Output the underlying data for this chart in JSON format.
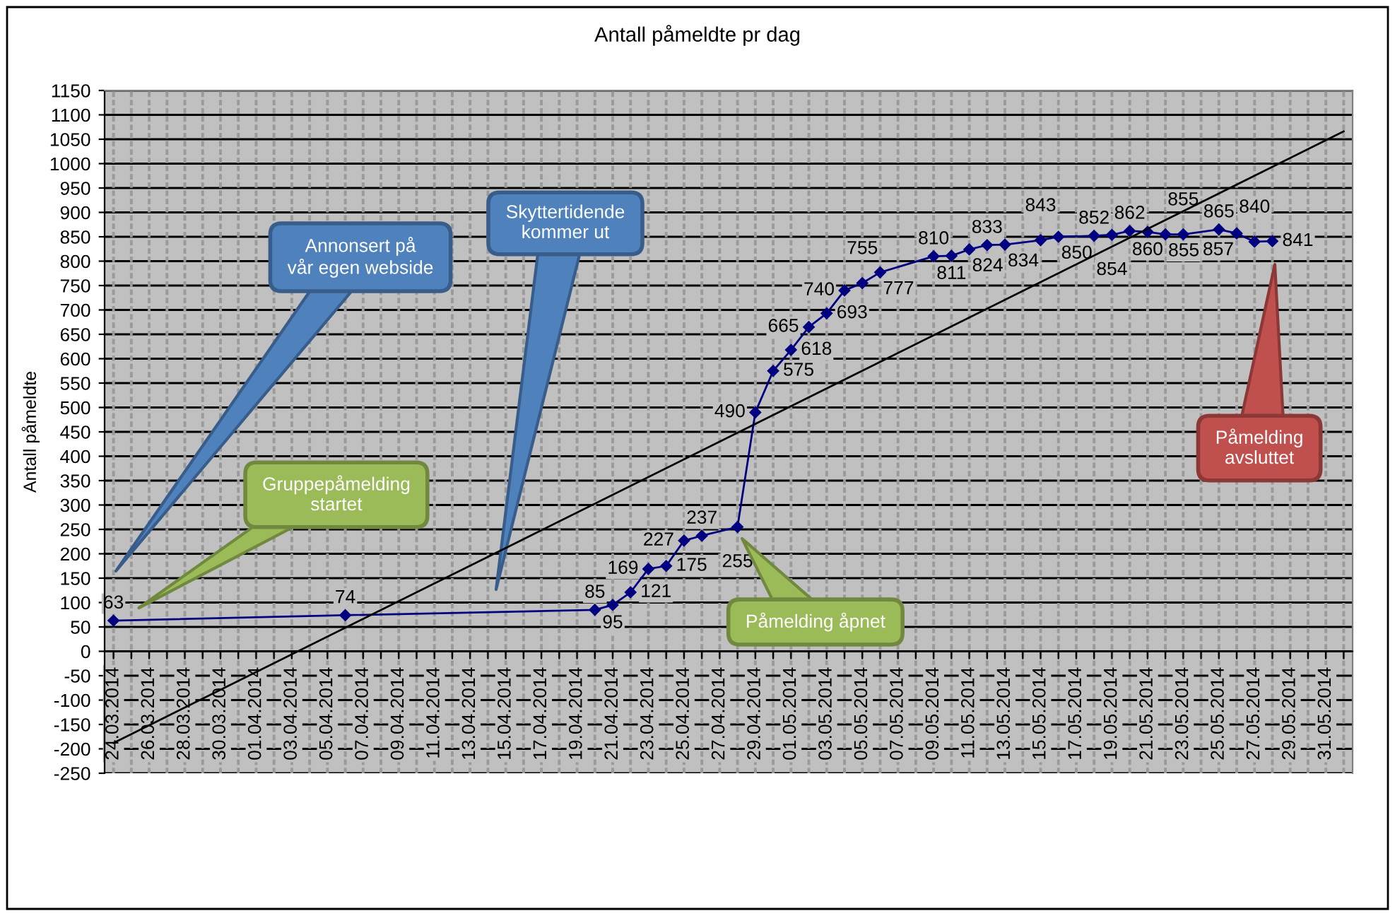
{
  "chart_data": {
    "type": "line",
    "title": "Antall påmeldte pr dag",
    "ylabel": "Antall påmeldte",
    "series": [
      {
        "color": "#000080",
        "marker": "diamond",
        "line_style": "solid",
        "x": [
          "2014-03-24",
          "2014-04-06",
          "2014-04-20",
          "2014-04-21",
          "2014-04-22",
          "2014-04-23",
          "2014-04-24",
          "2014-04-25",
          "2014-04-26",
          "2014-04-28",
          "2014-04-29",
          "2014-04-30",
          "2014-05-01",
          "2014-05-02",
          "2014-05-03",
          "2014-05-04",
          "2014-05-05",
          "2014-05-06",
          "2014-05-09",
          "2014-05-10",
          "2014-05-11",
          "2014-05-12",
          "2014-05-13",
          "2014-05-15",
          "2014-05-16",
          "2014-05-18",
          "2014-05-19",
          "2014-05-20",
          "2014-05-21",
          "2014-05-22",
          "2014-05-23",
          "2014-05-25",
          "2014-05-26",
          "2014-05-27",
          "2014-05-28"
        ],
        "values": [
          63,
          74,
          85,
          95,
          121,
          169,
          175,
          227,
          237,
          255,
          490,
          575,
          618,
          665,
          693,
          740,
          755,
          777,
          810,
          811,
          824,
          833,
          834,
          843,
          850,
          852,
          854,
          862,
          860,
          855,
          855,
          865,
          857,
          840,
          841
        ],
        "value_labels": [
          "63",
          "74",
          "85",
          "95",
          "121",
          "169",
          "175",
          "227",
          "237",
          "255",
          "490",
          "575",
          "618",
          "665",
          "693",
          "740",
          "755",
          "777",
          "810",
          "811",
          "824",
          "833",
          "834",
          "843",
          "850",
          "852",
          "854",
          "862",
          "860",
          "855",
          "855",
          "865",
          "857",
          "840",
          "841"
        ]
      },
      {
        "type": "line",
        "color": "#000000",
        "marker": "none",
        "line_style": "solid",
        "x": [
          "2014-03-24",
          "2014-06-01"
        ],
        "values": [
          -188,
          1066
        ]
      }
    ],
    "xlim": [
      "2014-03-23T12:00",
      "2014-06-01T12:00"
    ],
    "xticks": [
      {
        "value": "2014-03-24",
        "label": "24.03.2014"
      },
      {
        "value": "2014-03-25",
        "label": null
      },
      {
        "value": "2014-03-26",
        "label": "26.03.2014"
      },
      {
        "value": "2014-03-27",
        "label": null
      },
      {
        "value": "2014-03-28",
        "label": "28.03.2014"
      },
      {
        "value": "2014-03-29",
        "label": null
      },
      {
        "value": "2014-03-30",
        "label": "30.03.2014"
      },
      {
        "value": "2014-03-31",
        "label": null
      },
      {
        "value": "2014-04-01",
        "label": "01.04.2014"
      },
      {
        "value": "2014-04-02",
        "label": null
      },
      {
        "value": "2014-04-03",
        "label": "03.04.2014"
      },
      {
        "value": "2014-04-04",
        "label": null
      },
      {
        "value": "2014-04-05",
        "label": "05.04.2014"
      },
      {
        "value": "2014-04-06",
        "label": null
      },
      {
        "value": "2014-04-07",
        "label": "07.04.2014"
      },
      {
        "value": "2014-04-08",
        "label": null
      },
      {
        "value": "2014-04-09",
        "label": "09.04.2014"
      },
      {
        "value": "2014-04-10",
        "label": null
      },
      {
        "value": "2014-04-11",
        "label": "11.04.2014"
      },
      {
        "value": "2014-04-12",
        "label": null
      },
      {
        "value": "2014-04-13",
        "label": "13.04.2014"
      },
      {
        "value": "2014-04-14",
        "label": null
      },
      {
        "value": "2014-04-15",
        "label": "15.04.2014"
      },
      {
        "value": "2014-04-16",
        "label": null
      },
      {
        "value": "2014-04-17",
        "label": "17.04.2014"
      },
      {
        "value": "2014-04-18",
        "label": null
      },
      {
        "value": "2014-04-19",
        "label": "19.04.2014"
      },
      {
        "value": "2014-04-20",
        "label": null
      },
      {
        "value": "2014-04-21",
        "label": "21.04.2014"
      },
      {
        "value": "2014-04-22",
        "label": null
      },
      {
        "value": "2014-04-23",
        "label": "23.04.2014"
      },
      {
        "value": "2014-04-24",
        "label": null
      },
      {
        "value": "2014-04-25",
        "label": "25.04.2014"
      },
      {
        "value": "2014-04-26",
        "label": null
      },
      {
        "value": "2014-04-27",
        "label": "27.04.2014"
      },
      {
        "value": "2014-04-28",
        "label": null
      },
      {
        "value": "2014-04-29",
        "label": "29.04.2014"
      },
      {
        "value": "2014-04-30",
        "label": null
      },
      {
        "value": "2014-05-01",
        "label": "01.05.2014"
      },
      {
        "value": "2014-05-02",
        "label": null
      },
      {
        "value": "2014-05-03",
        "label": "03.05.2014"
      },
      {
        "value": "2014-05-04",
        "label": null
      },
      {
        "value": "2014-05-05",
        "label": "05.05.2014"
      },
      {
        "value": "2014-05-06",
        "label": null
      },
      {
        "value": "2014-05-07",
        "label": "07.05.2014"
      },
      {
        "value": "2014-05-08",
        "label": null
      },
      {
        "value": "2014-05-09",
        "label": "09.05.2014"
      },
      {
        "value": "2014-05-10",
        "label": null
      },
      {
        "value": "2014-05-11",
        "label": "11.05.2014"
      },
      {
        "value": "2014-05-12",
        "label": null
      },
      {
        "value": "2014-05-13",
        "label": "13.05.2014"
      },
      {
        "value": "2014-05-14",
        "label": null
      },
      {
        "value": "2014-05-15",
        "label": "15.05.2014"
      },
      {
        "value": "2014-05-16",
        "label": null
      },
      {
        "value": "2014-05-17",
        "label": "17.05.2014"
      },
      {
        "value": "2014-05-18",
        "label": null
      },
      {
        "value": "2014-05-19",
        "label": "19.05.2014"
      },
      {
        "value": "2014-05-20",
        "label": null
      },
      {
        "value": "2014-05-21",
        "label": "21.05.2014"
      },
      {
        "value": "2014-05-22",
        "label": null
      },
      {
        "value": "2014-05-23",
        "label": "23.05.2014"
      },
      {
        "value": "2014-05-24",
        "label": null
      },
      {
        "value": "2014-05-25",
        "label": "25.05.2014"
      },
      {
        "value": "2014-05-26",
        "label": null
      },
      {
        "value": "2014-05-27",
        "label": "27.05.2014"
      },
      {
        "value": "2014-05-28",
        "label": null
      },
      {
        "value": "2014-05-29",
        "label": "29.05.2014"
      },
      {
        "value": "2014-05-30",
        "label": null
      },
      {
        "value": "2014-05-31",
        "label": "31.05.2014"
      },
      {
        "value": "2014-06-01",
        "label": null
      }
    ],
    "ylim": [
      -250,
      1150
    ],
    "yticks": [
      -250,
      -200,
      -150,
      -100,
      -50,
      0,
      50,
      100,
      150,
      200,
      250,
      300,
      350,
      400,
      450,
      500,
      550,
      600,
      650,
      700,
      750,
      800,
      850,
      900,
      950,
      1000,
      1050,
      1100,
      1150
    ],
    "grid": true,
    "annotations": [
      "Annonsert på\nvår egen webside",
      "Gruppepåmelding\nstartet",
      "Skyttertidende\nkommer ut",
      "Påmelding åpnet",
      "Påmelding\navsluttet"
    ]
  }
}
